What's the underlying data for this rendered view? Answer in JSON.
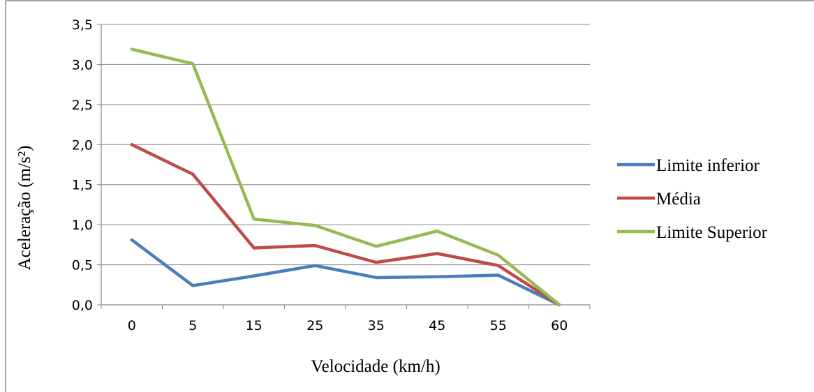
{
  "chart_data": {
    "type": "line",
    "title": "",
    "xlabel": "Velocidade (km/h)",
    "ylabel": "Aceleração (m/s²)",
    "categories": [
      "0",
      "5",
      "15",
      "25",
      "35",
      "45",
      "55",
      "60"
    ],
    "ylim": [
      0,
      3.5
    ],
    "y_ticks": [
      "0,0",
      "0,5",
      "1,0",
      "1,5",
      "2,0",
      "2,5",
      "3,0",
      "3,5"
    ],
    "grid": true,
    "legend_position": "right",
    "series": [
      {
        "name": "Limite inferior",
        "color": "#4a7ebb",
        "values": [
          0.81,
          0.24,
          0.36,
          0.49,
          0.34,
          0.35,
          0.37,
          0.0
        ]
      },
      {
        "name": "Média",
        "color": "#be4b48",
        "values": [
          2.0,
          1.63,
          0.71,
          0.74,
          0.53,
          0.64,
          0.49,
          0.0
        ]
      },
      {
        "name": "Limite Superior",
        "color": "#98b954",
        "values": [
          3.19,
          3.01,
          1.07,
          0.99,
          0.73,
          0.92,
          0.62,
          0.0
        ]
      }
    ]
  }
}
